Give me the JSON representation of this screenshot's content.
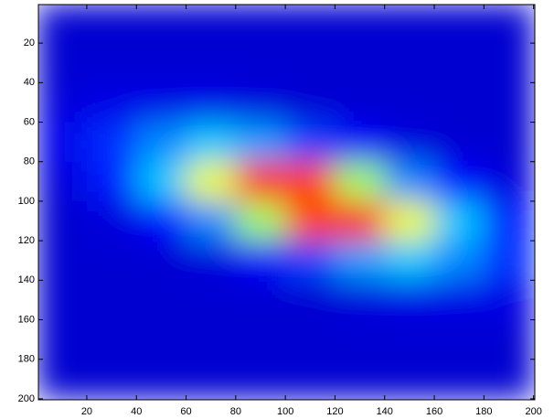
{
  "chart_data": {
    "type": "heatmap",
    "colormap": "jet",
    "clim": [
      0,
      1
    ],
    "x": [
      10,
      30,
      50,
      70,
      90,
      110,
      130,
      150,
      170,
      190
    ],
    "y": [
      10,
      30,
      50,
      70,
      90,
      110,
      130,
      150,
      170,
      190
    ],
    "z": [
      [
        0.08,
        0.08,
        0.08,
        0.08,
        0.08,
        0.08,
        0.08,
        0.08,
        0.08,
        0.08
      ],
      [
        0.08,
        0.08,
        0.08,
        0.08,
        0.08,
        0.08,
        0.08,
        0.08,
        0.08,
        0.08
      ],
      [
        0.09,
        0.1,
        0.1,
        0.1,
        0.09,
        0.08,
        0.08,
        0.08,
        0.08,
        0.08
      ],
      [
        0.11,
        0.17,
        0.26,
        0.32,
        0.28,
        0.19,
        0.12,
        0.09,
        0.08,
        0.08
      ],
      [
        0.09,
        0.15,
        0.32,
        0.61,
        0.85,
        0.81,
        0.53,
        0.26,
        0.13,
        0.09
      ],
      [
        0.08,
        0.09,
        0.13,
        0.26,
        0.53,
        0.81,
        0.85,
        0.61,
        0.32,
        0.15
      ],
      [
        0.08,
        0.08,
        0.08,
        0.09,
        0.12,
        0.19,
        0.28,
        0.32,
        0.26,
        0.17
      ],
      [
        0.08,
        0.08,
        0.08,
        0.08,
        0.08,
        0.08,
        0.09,
        0.1,
        0.1,
        0.1
      ],
      [
        0.08,
        0.08,
        0.08,
        0.08,
        0.08,
        0.08,
        0.08,
        0.08,
        0.08,
        0.08
      ],
      [
        0.08,
        0.08,
        0.08,
        0.08,
        0.08,
        0.08,
        0.08,
        0.08,
        0.08,
        0.08
      ]
    ],
    "xlim": [
      0.5,
      200.5
    ],
    "ylim": [
      0.5,
      200.5
    ],
    "y_reversed": true,
    "xticks": [
      20,
      40,
      60,
      80,
      100,
      120,
      140,
      160,
      180,
      200
    ],
    "yticks": [
      20,
      40,
      60,
      80,
      100,
      120,
      140,
      160,
      180,
      200
    ]
  }
}
